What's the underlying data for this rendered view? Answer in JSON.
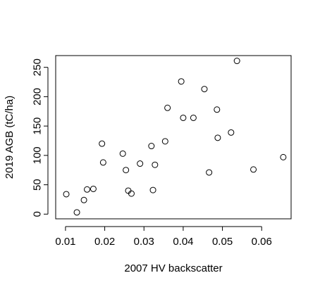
{
  "chart_data": {
    "type": "scatter",
    "title": "",
    "xlabel": "2007 HV backscatter",
    "ylabel": "2019 AGB (tC/ha)",
    "xlim": [
      0.0075,
      0.0675
    ],
    "ylim": [
      -8,
      270
    ],
    "x_ticks": [
      0.01,
      0.02,
      0.03,
      0.04,
      0.05,
      0.06
    ],
    "x_tick_labels": [
      "0.01",
      "0.02",
      "0.03",
      "0.04",
      "0.05",
      "0.06"
    ],
    "y_ticks": [
      0,
      50,
      100,
      150,
      200,
      250
    ],
    "y_tick_labels": [
      "0",
      "50",
      "100",
      "150",
      "200",
      "250"
    ],
    "grid": false,
    "marker": "open-circle",
    "point_color": "#000000",
    "points": [
      {
        "x": 0.0102,
        "y": 34
      },
      {
        "x": 0.0129,
        "y": 3
      },
      {
        "x": 0.0147,
        "y": 24
      },
      {
        "x": 0.0155,
        "y": 42
      },
      {
        "x": 0.0171,
        "y": 43
      },
      {
        "x": 0.0193,
        "y": 120
      },
      {
        "x": 0.0196,
        "y": 88
      },
      {
        "x": 0.0246,
        "y": 103
      },
      {
        "x": 0.0254,
        "y": 75
      },
      {
        "x": 0.026,
        "y": 40
      },
      {
        "x": 0.0268,
        "y": 35
      },
      {
        "x": 0.029,
        "y": 86
      },
      {
        "x": 0.0319,
        "y": 116
      },
      {
        "x": 0.0323,
        "y": 41
      },
      {
        "x": 0.0328,
        "y": 84
      },
      {
        "x": 0.0354,
        "y": 124
      },
      {
        "x": 0.036,
        "y": 181
      },
      {
        "x": 0.0395,
        "y": 226
      },
      {
        "x": 0.04,
        "y": 164
      },
      {
        "x": 0.0426,
        "y": 164
      },
      {
        "x": 0.0454,
        "y": 213
      },
      {
        "x": 0.0466,
        "y": 71
      },
      {
        "x": 0.0486,
        "y": 178
      },
      {
        "x": 0.0488,
        "y": 130
      },
      {
        "x": 0.0522,
        "y": 139
      },
      {
        "x": 0.0537,
        "y": 261
      },
      {
        "x": 0.0579,
        "y": 76
      },
      {
        "x": 0.0655,
        "y": 97
      }
    ]
  }
}
